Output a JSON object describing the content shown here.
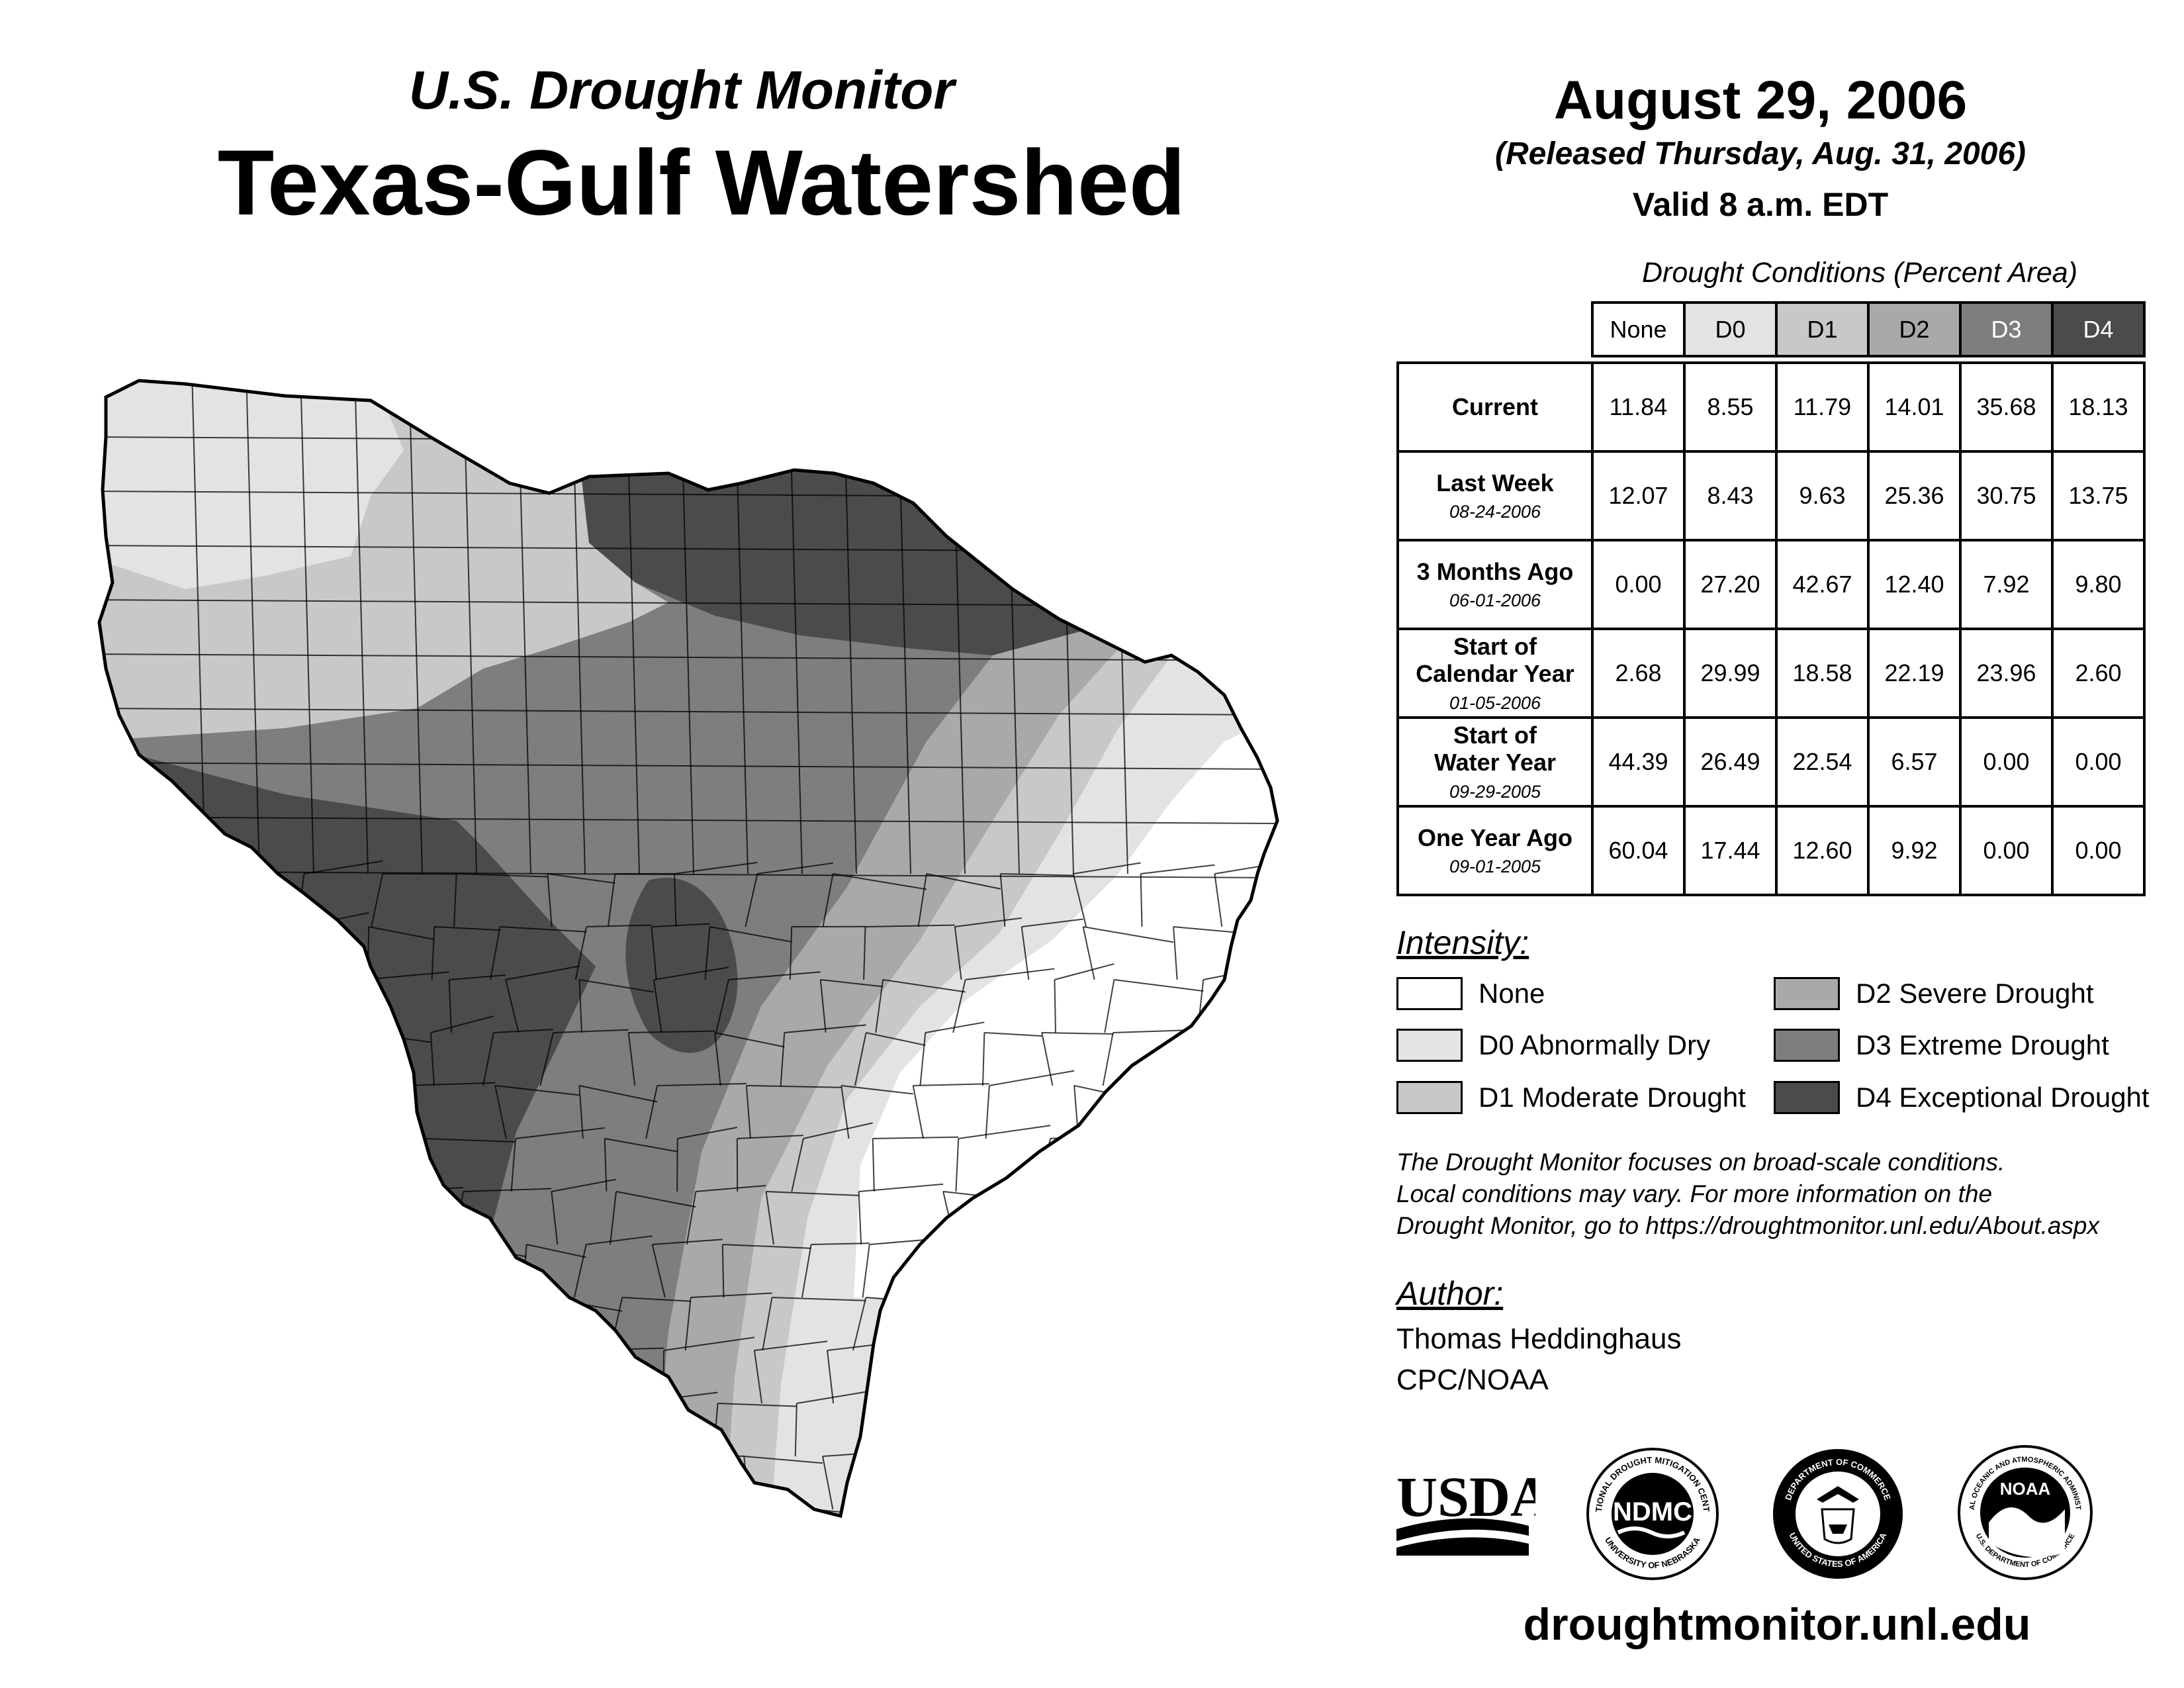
{
  "header": {
    "subtitle": "U.S. Drought Monitor",
    "title": "Texas-Gulf Watershed",
    "date": "August 29, 2006",
    "released": "(Released Thursday, Aug. 31, 2006)",
    "valid": "Valid 8 a.m. EDT"
  },
  "table": {
    "caption": "Drought Conditions (Percent Area)",
    "columns": [
      "None",
      "D0",
      "D1",
      "D2",
      "D3",
      "D4"
    ],
    "column_colors": [
      "#ffffff",
      "#e3e3e3",
      "#c8c8c8",
      "#a9a9a9",
      "#7e7e7e",
      "#4b4b4b"
    ],
    "rows": [
      {
        "label": [
          "Current"
        ],
        "date": "",
        "values": [
          "11.84",
          "8.55",
          "11.79",
          "14.01",
          "35.68",
          "18.13"
        ]
      },
      {
        "label": [
          "Last Week"
        ],
        "date": "08-24-2006",
        "values": [
          "12.07",
          "8.43",
          "9.63",
          "25.36",
          "30.75",
          "13.75"
        ]
      },
      {
        "label": [
          "3 Months Ago"
        ],
        "date": "06-01-2006",
        "values": [
          "0.00",
          "27.20",
          "42.67",
          "12.40",
          "7.92",
          "9.80"
        ]
      },
      {
        "label": [
          "Start of",
          "Calendar Year"
        ],
        "date": "01-05-2006",
        "values": [
          "2.68",
          "29.99",
          "18.58",
          "22.19",
          "23.96",
          "2.60"
        ]
      },
      {
        "label": [
          "Start of",
          "Water Year"
        ],
        "date": "09-29-2005",
        "values": [
          "44.39",
          "26.49",
          "22.54",
          "6.57",
          "0.00",
          "0.00"
        ]
      },
      {
        "label": [
          "One Year Ago"
        ],
        "date": "09-01-2005",
        "values": [
          "60.04",
          "17.44",
          "12.60",
          "9.92",
          "0.00",
          "0.00"
        ]
      }
    ]
  },
  "legend": {
    "title": "Intensity:",
    "items": [
      {
        "label": "None",
        "color": "#ffffff"
      },
      {
        "label": "D0 Abnormally Dry",
        "color": "#e3e3e3"
      },
      {
        "label": "D1 Moderate Drought",
        "color": "#c8c8c8"
      },
      {
        "label": "D2 Severe Drought",
        "color": "#a9a9a9"
      },
      {
        "label": "D3 Extreme Drought",
        "color": "#7e7e7e"
      },
      {
        "label": "D4 Exceptional Drought",
        "color": "#4b4b4b"
      }
    ]
  },
  "note": {
    "line1": "The Drought Monitor focuses on broad-scale conditions.",
    "line2": "Local conditions may vary. For more information on the",
    "line3": "Drought Monitor, go to https://droughtmonitor.unl.edu/About.aspx"
  },
  "author": {
    "title": "Author:",
    "name": "Thomas Heddinghaus",
    "org": "CPC/NOAA"
  },
  "logos": {
    "usda": "USDA",
    "ndmc": "NDMC",
    "ndmc_ring_top": "NATIONAL DROUGHT MITIGATION CENTER",
    "ndmc_ring_bottom": "UNIVERSITY OF NEBRASKA",
    "doc_ring_top": "DEPARTMENT OF COMMERCE",
    "doc_ring_bottom": "UNITED STATES OF AMERICA",
    "noaa": "NOAA",
    "noaa_ring_top": "NATIONAL OCEANIC AND ATMOSPHERIC ADMINISTRATION",
    "noaa_ring_bottom": "U.S. DEPARTMENT OF COMMERCE"
  },
  "footer": {
    "url": "droughtmonitor.unl.edu"
  }
}
